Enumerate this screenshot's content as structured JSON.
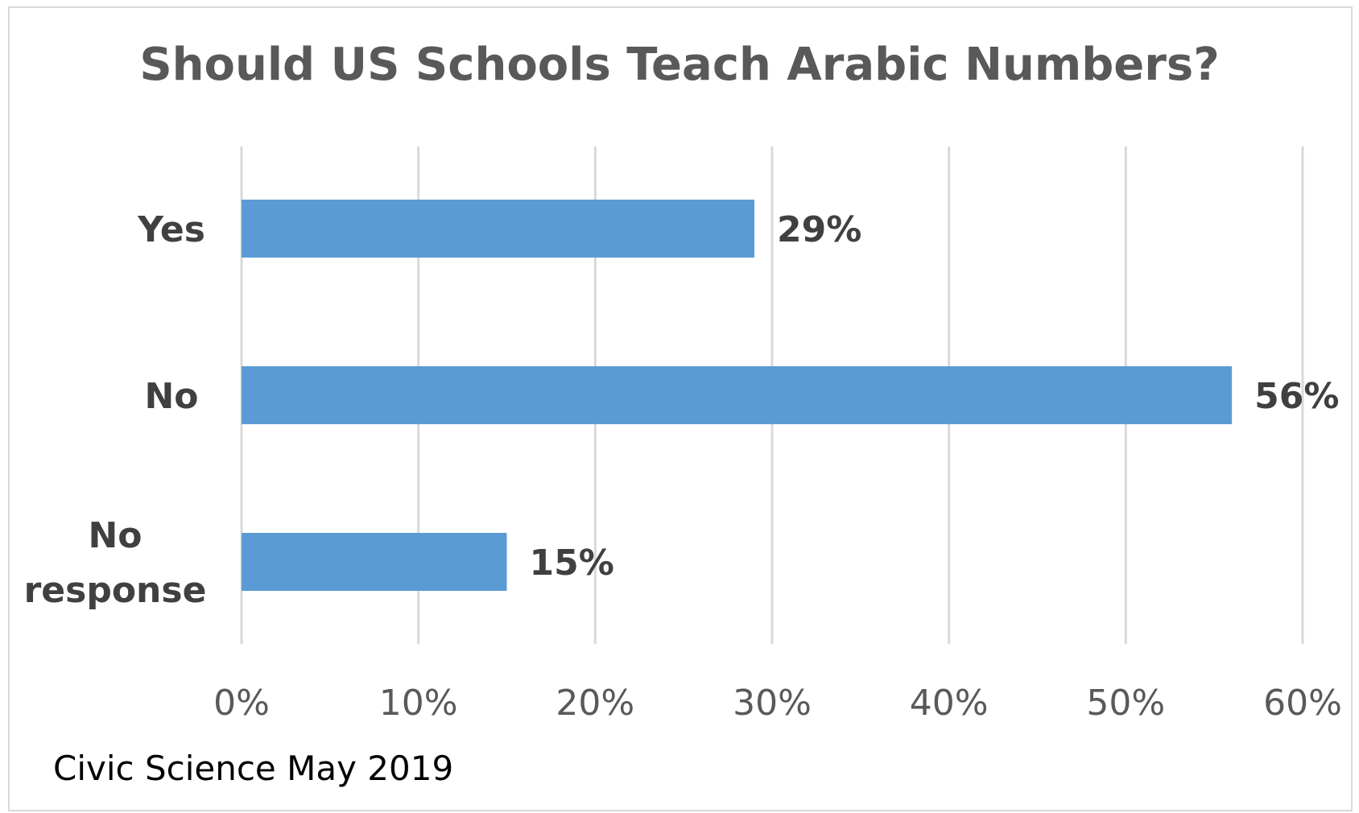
{
  "chart_data": {
    "type": "bar",
    "orientation": "horizontal",
    "title": "Should US Schools Teach Arabic Numbers?",
    "source": "Civic Science May 2019",
    "categories": [
      "Yes",
      "No",
      "No response"
    ],
    "category_lines": [
      [
        "Yes"
      ],
      [
        "No"
      ],
      [
        "No",
        "response"
      ]
    ],
    "values": [
      29,
      56,
      15
    ],
    "data_labels": [
      "29%",
      "56%",
      "15%"
    ],
    "xlim": [
      0,
      60
    ],
    "xticks": [
      0,
      10,
      20,
      30,
      40,
      50,
      60
    ],
    "xtick_labels": [
      "0%",
      "10%",
      "20%",
      "30%",
      "40%",
      "50%",
      "60%"
    ],
    "xlabel": "",
    "ylabel": "",
    "grid": "vertical",
    "legend": "none",
    "bar_color": "#5b9bd5",
    "grid_color": "#d9d9d9"
  }
}
